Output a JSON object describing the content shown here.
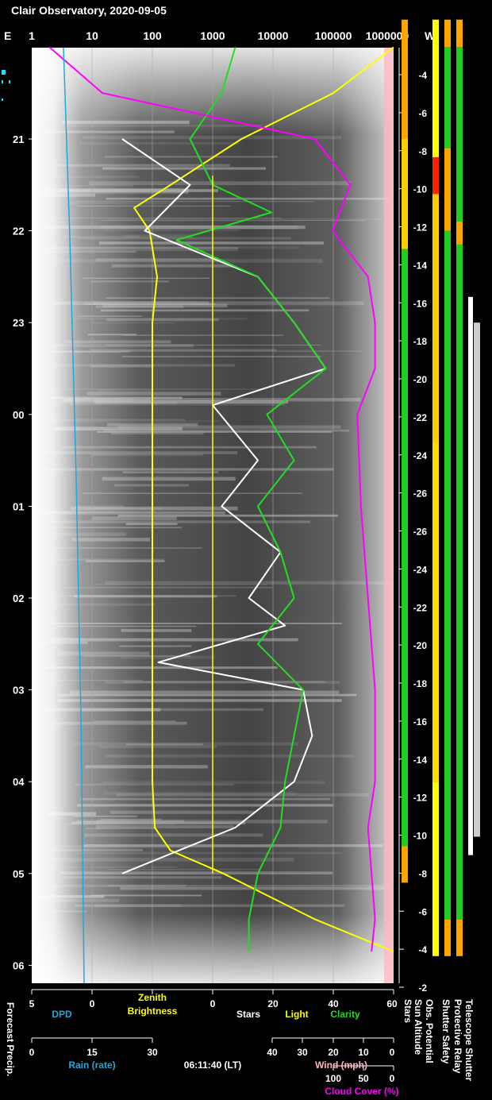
{
  "chart_data": {
    "type": "line",
    "title": "Clair Observatory, 2020-09-05",
    "top_axis": {
      "left_label": "E",
      "right_label": "W",
      "ticks": [
        "1",
        "10",
        "100",
        "1000",
        "10000",
        "100000",
        "1000000"
      ]
    },
    "time_axis": {
      "hours": [
        "21",
        "22",
        "23",
        "00",
        "01",
        "02",
        "03",
        "04",
        "05",
        "06"
      ]
    },
    "sun_altitude": {
      "label": "Sun Altitude",
      "ticks": [
        "-4",
        "-6",
        "-8",
        "-10",
        "-12",
        "-14",
        "-16",
        "-18",
        "-20",
        "-22",
        "-24",
        "-26",
        "-26",
        "-24",
        "-22",
        "-20",
        "-18",
        "-16",
        "-14",
        "-12",
        "-10",
        "-8",
        "-6",
        "-4",
        "-2"
      ]
    },
    "bottom_axes": {
      "dpd": {
        "label": "DPD",
        "ticks": [
          "5",
          "0"
        ],
        "color": "#1fa8e0"
      },
      "zenith": {
        "label_line1": "Zenith",
        "label_line2": "Brightness",
        "ticks": [
          "0"
        ],
        "color": "#ffff00"
      },
      "stars": {
        "label": "Stars",
        "color": "#ffffff"
      },
      "light": {
        "label": "Light",
        "color": "#ffff00"
      },
      "clarity": {
        "label": "Clarity",
        "ticks": [
          "20",
          "40",
          "60"
        ],
        "color": "#22dd22"
      },
      "stars_right": {
        "label": "Stars",
        "color": "#ffffff"
      },
      "rain": {
        "label": "Rain (rate)",
        "ticks": [
          "0",
          "15",
          "30"
        ],
        "color": "#1fa8e0"
      },
      "wind": {
        "label": "Wind (mph)",
        "ticks": [
          "40",
          "30",
          "20",
          "10",
          "0"
        ],
        "color": "#ffb6c1"
      },
      "cloud": {
        "label": "Cloud Cover (%)",
        "ticks": [
          "100",
          "50",
          "0"
        ],
        "color": "#ff00ff"
      },
      "timestamp": "06:11:40 (LT)",
      "forecast_precip": "Forecast Precip."
    },
    "status_bars": [
      {
        "label": "Obs. Potential"
      },
      {
        "label": "Shutter Safety"
      },
      {
        "label": "Protective Relay"
      },
      {
        "label": "Telescope Shutter"
      }
    ],
    "series": [
      {
        "name": "Zenith Brightness",
        "color": "#ffff00",
        "x": [
          20.0,
          20.5,
          21.0,
          21.5,
          21.75,
          22.0,
          22.5,
          23.0,
          23.5,
          24.0,
          25.0,
          26.0,
          27.0,
          28.0,
          28.5,
          28.75,
          29.0,
          29.5,
          29.85
        ],
        "y": [
          1000000,
          100000,
          3000,
          200,
          50,
          90,
          120,
          100,
          100,
          100,
          100,
          100,
          100,
          100,
          110,
          200,
          1500,
          50000,
          1000000
        ]
      },
      {
        "name": "Stars",
        "color": "#ffffff",
        "x": [
          21.0,
          21.5,
          22.0,
          22.5,
          23.0,
          23.5,
          23.9,
          24.5,
          25.0,
          25.5,
          26.0,
          26.3,
          26.7,
          27.0,
          27.5,
          28.0,
          28.5,
          28.7,
          29.0
        ],
        "y": [
          0,
          15,
          5,
          30,
          38,
          45,
          20,
          30,
          22,
          35,
          28,
          36,
          8,
          40,
          42,
          38,
          25,
          15,
          0
        ]
      },
      {
        "name": "Clarity",
        "color": "#22dd22",
        "x": [
          20.0,
          20.5,
          21.0,
          21.5,
          21.8,
          22.1,
          22.5,
          23.0,
          23.5,
          24.0,
          24.5,
          25.0,
          25.5,
          26.0,
          26.5,
          27.0,
          27.5,
          28.0,
          28.5,
          29.0,
          29.5,
          29.85
        ],
        "y": [
          25,
          22,
          15,
          20,
          33,
          12,
          30,
          38,
          45,
          32,
          38,
          30,
          35,
          38,
          30,
          40,
          38,
          36,
          35,
          30,
          28,
          28
        ]
      },
      {
        "name": "Cloud Cover",
        "color": "#ff00ff",
        "x": [
          20.0,
          20.5,
          21.0,
          21.5,
          22.0,
          22.5,
          23.0,
          23.5,
          24.0,
          25.0,
          26.0,
          27.0,
          28.0,
          28.5,
          29.0,
          29.5,
          29.85
        ],
        "y": [
          5,
          20,
          80,
          90,
          85,
          95,
          97,
          97,
          92,
          93,
          95,
          97,
          97,
          95,
          96,
          97,
          96
        ]
      }
    ],
    "grid": true
  }
}
